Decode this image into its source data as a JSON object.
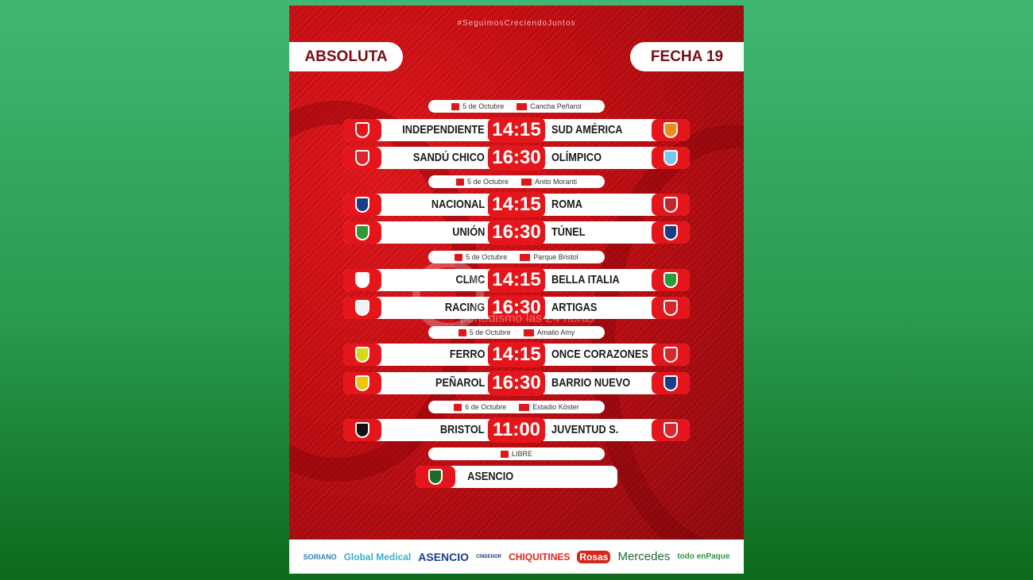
{
  "hashtag": "#SeguimosCreciendoJuntos",
  "category": "ABSOLUTA",
  "round": "FECHA 19",
  "colors": {
    "primary_red": "#e5161b",
    "dark_red": "#7a0d14",
    "background_green": "#2a9a4e"
  },
  "groups": [
    {
      "date": "5 de Octubre",
      "venue": "Cancha Peñarol",
      "matches": [
        {
          "home": "INDEPENDIENTE",
          "time": "14:15",
          "away": "SUD AMÉRICA"
        },
        {
          "home": "SANDÚ CHICO",
          "time": "16:30",
          "away": "OLÍMPICO"
        }
      ]
    },
    {
      "date": "5 de Octubre",
      "venue": "Anito Moranti",
      "matches": [
        {
          "home": "NACIONAL",
          "time": "14:15",
          "away": "ROMA"
        },
        {
          "home": "UNIÓN",
          "time": "16:30",
          "away": "TÚNEL"
        }
      ]
    },
    {
      "date": "5 de Octubre",
      "venue": "Parque Bristol",
      "matches": [
        {
          "home": "CLMC",
          "time": "14:15",
          "away": "BELLA ITALIA"
        },
        {
          "home": "RACING",
          "time": "16:30",
          "away": "ARTIGAS"
        }
      ]
    },
    {
      "date": "5 de Octubre",
      "venue": "Amalio Amy",
      "matches": [
        {
          "home": "FERRO",
          "time": "14:15",
          "away": "ONCE CORAZONES"
        },
        {
          "home": "PEÑAROL",
          "time": "16:30",
          "away": "BARRIO NUEVO"
        }
      ]
    },
    {
      "date": "6 de Octubre",
      "venue": "Estadio Köster",
      "matches": [
        {
          "home": "BRISTOL",
          "time": "11:00",
          "away": "JUVENTUD S."
        }
      ]
    }
  ],
  "libre": {
    "label": "LIBRE",
    "team": "ASENCIO"
  },
  "watermark": "periodismo las 24 horas",
  "sponsors": [
    "SORIANO",
    "Global Medical",
    "ASENCIO",
    "CINDENOR",
    "CHIQUITINES",
    "Rosas",
    "Mercedes",
    "todo enPaque"
  ]
}
